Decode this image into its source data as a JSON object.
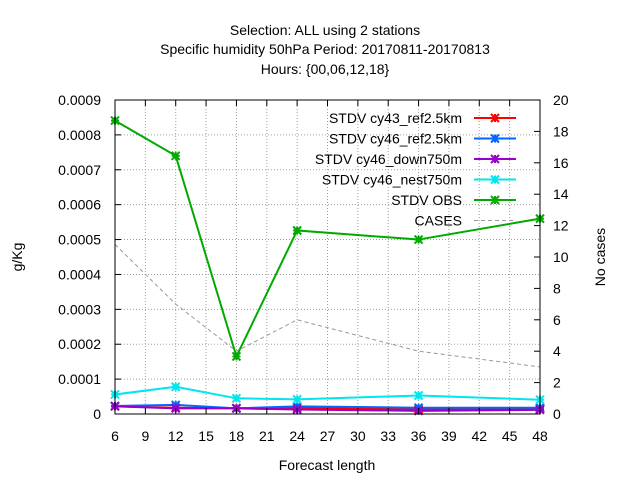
{
  "chart_data": {
    "type": "line",
    "title_lines": [
      "Selection: ALL using     2 stations",
      "Specific humidity 50hPa   Period: 20170811-20170813",
      "Hours: {00,06,12,18}"
    ],
    "xlabel": "Forecast length",
    "ylabel": "g/Kg",
    "y2label": "No cases",
    "x": [
      6,
      12,
      18,
      24,
      36,
      48
    ],
    "xlim": [
      6,
      48
    ],
    "ylim": [
      0,
      0.0009
    ],
    "y2lim": [
      0,
      20
    ],
    "x_ticks": [
      "6",
      "9",
      "12",
      "15",
      "18",
      "21",
      "24",
      "27",
      "30",
      "33",
      "36",
      "39",
      "42",
      "45",
      "48"
    ],
    "y_ticks": [
      "0",
      "0.0001",
      "0.0002",
      "0.0003",
      "0.0004",
      "0.0005",
      "0.0006",
      "0.0007",
      "0.0008",
      "0.0009"
    ],
    "y2_ticks": [
      "0",
      "2",
      "4",
      "6",
      "8",
      "10",
      "12",
      "14",
      "16",
      "18",
      "20"
    ],
    "grid": true,
    "legend_position": "top-right",
    "series": [
      {
        "name": "STDV cy43_ref2.5km",
        "color": "#ff0000",
        "axis": "y1",
        "style": "line-points",
        "values": [
          2.2e-05,
          1.8e-05,
          1.7e-05,
          1.8e-05,
          1.3e-05,
          1.5e-05
        ]
      },
      {
        "name": "STDV cy46_ref2.5km",
        "color": "#0066ff",
        "axis": "y1",
        "style": "line-points",
        "values": [
          2.3e-05,
          2.6e-05,
          1.6e-05,
          2.2e-05,
          1.8e-05,
          1.8e-05
        ]
      },
      {
        "name": "STDV cy46_down750m",
        "color": "#9900cc",
        "axis": "y1",
        "style": "line-points",
        "values": [
          2.2e-05,
          1.6e-05,
          1.6e-05,
          1.3e-05,
          9e-06,
          1.2e-05
        ]
      },
      {
        "name": "STDV cy46_nest750m",
        "color": "#00e5ee",
        "axis": "y1",
        "style": "line-points",
        "values": [
          5.6e-05,
          7.8e-05,
          4.5e-05,
          4.2e-05,
          5.3e-05,
          4.1e-05
        ]
      },
      {
        "name": "STDV OBS",
        "color": "#00aa00",
        "axis": "y1",
        "style": "line-points",
        "values": [
          0.000841,
          0.00074,
          0.000165,
          0.000526,
          0.0005,
          0.00056
        ]
      },
      {
        "name": "CASES",
        "color": "#999999",
        "axis": "y2",
        "style": "dashed",
        "values": [
          10.8,
          7,
          4,
          6,
          4,
          3
        ]
      }
    ]
  }
}
